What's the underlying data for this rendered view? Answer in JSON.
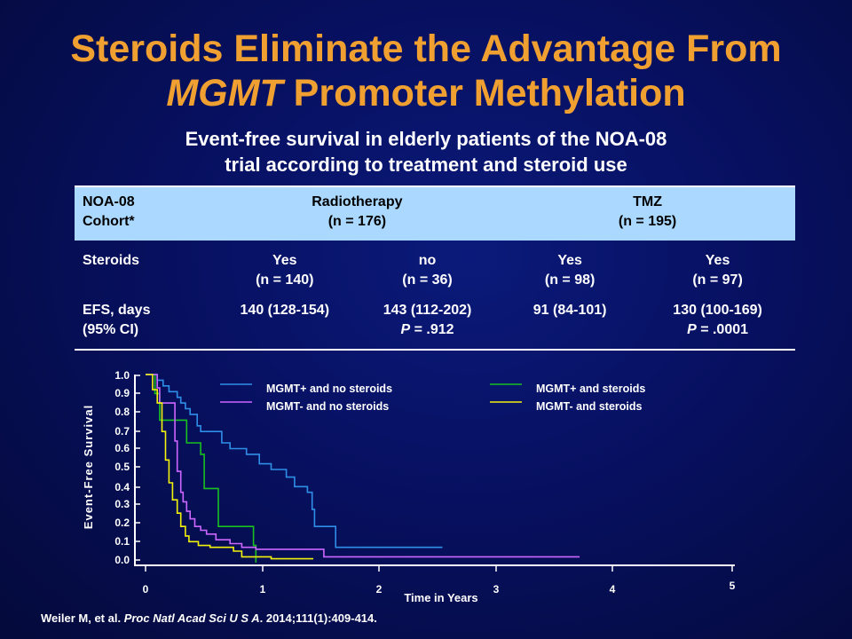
{
  "slide": {
    "title_line1": "Steroids Eliminate the Advantage From",
    "title_line2_italic": "MGMT",
    "title_line2_rest": " Promoter Methylation",
    "subtitle_line1": "Event-free survival in elderly patients of the NOA-08",
    "subtitle_line2": "trial according to treatment and steroid use",
    "citation_pre": "Weiler M, et al. ",
    "citation_journal": "Proc Natl Acad Sci U S A",
    "citation_post": ". 2014;111(1):409-414."
  },
  "table": {
    "header": {
      "label_line1": "NOA-08",
      "label_line2": "Cohort*",
      "group1_line1": "Radiotherapy",
      "group1_line2": "(n = 176)",
      "group2_line1": "TMZ",
      "group2_line2": "(n = 195)"
    },
    "steroids_row": {
      "label": "Steroids",
      "cells": [
        {
          "line1": "Yes",
          "line2": "(n = 140)"
        },
        {
          "line1": "no",
          "line2": "(n = 36)"
        },
        {
          "line1": "Yes",
          "line2": "(n = 98)"
        },
        {
          "line1": "Yes",
          "line2": "(n = 97)"
        }
      ]
    },
    "efs_row": {
      "label_line1": "EFS, days",
      "label_line2": "(95% CI)",
      "cells": [
        {
          "line1": "140 (128-154)",
          "p_label": "",
          "p_value": ""
        },
        {
          "line1": "143 (112-202)",
          "p_label": "P",
          "p_value": " = .912"
        },
        {
          "line1": "91 (84-101)",
          "p_label": "",
          "p_value": ""
        },
        {
          "line1": "130 (100-169)",
          "p_label": "P",
          "p_value": " = .0001"
        }
      ]
    }
  },
  "chart_data": {
    "type": "line",
    "step": true,
    "xlabel": "Time in Years",
    "ylabel": "Event-Free Survival",
    "xlim": [
      0,
      5
    ],
    "ylim": [
      0,
      1.0
    ],
    "x_ticks": [
      "0",
      "1",
      "2",
      "3",
      "4",
      "5"
    ],
    "y_ticks": [
      "1.0",
      "0.9",
      "0.8",
      "0.7",
      "0.6",
      "0.5",
      "0.4",
      "0.3",
      "0.2",
      "0.1",
      "0.0"
    ],
    "grid": false,
    "legend_placement": "top",
    "series": [
      {
        "name": "MGMT+ and no steroids",
        "color": "#2f8fe8",
        "points": [
          [
            0,
            1.0
          ],
          [
            0.1,
            1.0
          ],
          [
            0.1,
            0.97
          ],
          [
            0.15,
            0.97
          ],
          [
            0.15,
            0.94
          ],
          [
            0.2,
            0.94
          ],
          [
            0.2,
            0.91
          ],
          [
            0.27,
            0.91
          ],
          [
            0.27,
            0.88
          ],
          [
            0.3,
            0.88
          ],
          [
            0.3,
            0.85
          ],
          [
            0.34,
            0.85
          ],
          [
            0.34,
            0.82
          ],
          [
            0.38,
            0.82
          ],
          [
            0.38,
            0.79
          ],
          [
            0.44,
            0.79
          ],
          [
            0.44,
            0.73
          ],
          [
            0.47,
            0.73
          ],
          [
            0.47,
            0.7
          ],
          [
            0.65,
            0.7
          ],
          [
            0.65,
            0.64
          ],
          [
            0.72,
            0.64
          ],
          [
            0.72,
            0.61
          ],
          [
            0.86,
            0.61
          ],
          [
            0.86,
            0.58
          ],
          [
            0.97,
            0.58
          ],
          [
            0.97,
            0.53
          ],
          [
            1.07,
            0.53
          ],
          [
            1.07,
            0.5
          ],
          [
            1.2,
            0.5
          ],
          [
            1.2,
            0.46
          ],
          [
            1.27,
            0.46
          ],
          [
            1.27,
            0.41
          ],
          [
            1.38,
            0.41
          ],
          [
            1.38,
            0.38
          ],
          [
            1.42,
            0.38
          ],
          [
            1.42,
            0.29
          ],
          [
            1.44,
            0.29
          ],
          [
            1.44,
            0.2
          ],
          [
            1.62,
            0.2
          ],
          [
            1.62,
            0.09
          ],
          [
            2.53,
            0.09
          ]
        ]
      },
      {
        "name": "MGMT+ and steroids",
        "color": "#18c020",
        "points": [
          [
            0,
            1.0
          ],
          [
            0.08,
            1.0
          ],
          [
            0.08,
            0.9
          ],
          [
            0.12,
            0.9
          ],
          [
            0.12,
            0.76
          ],
          [
            0.35,
            0.76
          ],
          [
            0.35,
            0.64
          ],
          [
            0.47,
            0.64
          ],
          [
            0.47,
            0.58
          ],
          [
            0.5,
            0.58
          ],
          [
            0.5,
            0.4
          ],
          [
            0.62,
            0.4
          ],
          [
            0.62,
            0.2
          ],
          [
            0.92,
            0.2
          ],
          [
            0.92,
            0.1
          ],
          [
            0.94,
            0.1
          ],
          [
            0.94,
            0.01
          ]
        ]
      },
      {
        "name": "MGMT- and no steroids",
        "color": "#cc66ff",
        "points": [
          [
            0,
            1.0
          ],
          [
            0.1,
            1.0
          ],
          [
            0.1,
            0.93
          ],
          [
            0.12,
            0.93
          ],
          [
            0.12,
            0.85
          ],
          [
            0.25,
            0.85
          ],
          [
            0.25,
            0.65
          ],
          [
            0.27,
            0.65
          ],
          [
            0.27,
            0.49
          ],
          [
            0.3,
            0.49
          ],
          [
            0.3,
            0.38
          ],
          [
            0.32,
            0.38
          ],
          [
            0.32,
            0.33
          ],
          [
            0.35,
            0.33
          ],
          [
            0.35,
            0.28
          ],
          [
            0.38,
            0.28
          ],
          [
            0.38,
            0.24
          ],
          [
            0.42,
            0.24
          ],
          [
            0.42,
            0.2
          ],
          [
            0.47,
            0.2
          ],
          [
            0.47,
            0.18
          ],
          [
            0.52,
            0.18
          ],
          [
            0.52,
            0.16
          ],
          [
            0.6,
            0.16
          ],
          [
            0.6,
            0.13
          ],
          [
            0.72,
            0.13
          ],
          [
            0.72,
            0.11
          ],
          [
            0.82,
            0.11
          ],
          [
            0.82,
            0.09
          ],
          [
            0.94,
            0.09
          ],
          [
            0.94,
            0.08
          ],
          [
            1.52,
            0.08
          ],
          [
            1.52,
            0.04
          ],
          [
            3.7,
            0.04
          ]
        ]
      },
      {
        "name": "MGMT- and steroids",
        "color": "#f2f20a",
        "points": [
          [
            0,
            1.0
          ],
          [
            0.06,
            1.0
          ],
          [
            0.06,
            0.92
          ],
          [
            0.1,
            0.92
          ],
          [
            0.1,
            0.85
          ],
          [
            0.14,
            0.85
          ],
          [
            0.14,
            0.7
          ],
          [
            0.17,
            0.7
          ],
          [
            0.17,
            0.55
          ],
          [
            0.2,
            0.55
          ],
          [
            0.2,
            0.43
          ],
          [
            0.23,
            0.43
          ],
          [
            0.23,
            0.34
          ],
          [
            0.27,
            0.34
          ],
          [
            0.27,
            0.27
          ],
          [
            0.3,
            0.27
          ],
          [
            0.3,
            0.2
          ],
          [
            0.34,
            0.2
          ],
          [
            0.34,
            0.15
          ],
          [
            0.37,
            0.15
          ],
          [
            0.37,
            0.12
          ],
          [
            0.45,
            0.12
          ],
          [
            0.45,
            0.1
          ],
          [
            0.55,
            0.1
          ],
          [
            0.55,
            0.09
          ],
          [
            0.75,
            0.09
          ],
          [
            0.75,
            0.07
          ],
          [
            0.82,
            0.07
          ],
          [
            0.82,
            0.04
          ],
          [
            1.07,
            0.04
          ],
          [
            1.07,
            0.03
          ],
          [
            1.43,
            0.03
          ]
        ]
      }
    ]
  }
}
